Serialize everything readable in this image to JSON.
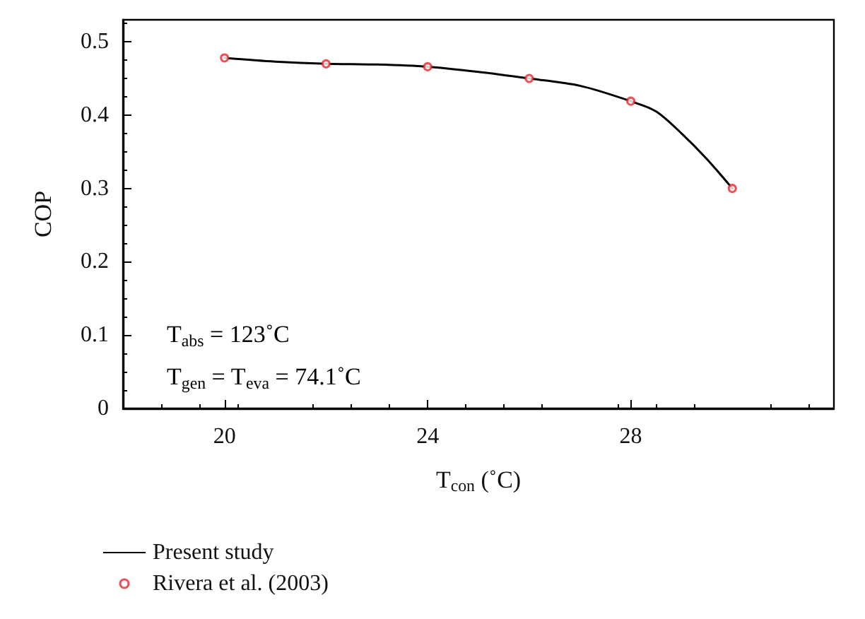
{
  "chart_data": {
    "type": "line",
    "xlabel": "T$_{con}$ (˚C)",
    "ylabel": "COP",
    "xlim": [
      18,
      32
    ],
    "xticks": [
      20,
      24,
      28
    ],
    "ylim": [
      0,
      0.53
    ],
    "yticks": [
      0,
      0.1,
      0.2,
      0.3,
      0.4,
      0.5
    ],
    "grid": false,
    "legend": "bottom left",
    "annotations": [
      "T$_{abs}$ = 123˚C",
      "T$_{gen}$ = T$_{eva}$ = 74.1˚C"
    ],
    "series": [
      {
        "name": "Present study",
        "marker": "none",
        "line_style": "solid",
        "color": "#000000",
        "x": [
          20,
          21,
          22,
          23,
          24,
          25,
          26,
          27,
          28,
          28.5,
          29,
          29.5,
          30
        ],
        "values": [
          0.478,
          0.473,
          0.47,
          0.469,
          0.466,
          0.459,
          0.45,
          0.44,
          0.419,
          0.405,
          0.375,
          0.34,
          0.3
        ]
      },
      {
        "name": "Rivera et al. (2003)",
        "type": "scatter",
        "marker": "circle",
        "color": "#e8262a",
        "x": [
          20,
          22,
          24,
          26,
          28,
          30
        ],
        "values": [
          0.478,
          0.47,
          0.466,
          0.45,
          0.419,
          0.3
        ]
      }
    ]
  }
}
